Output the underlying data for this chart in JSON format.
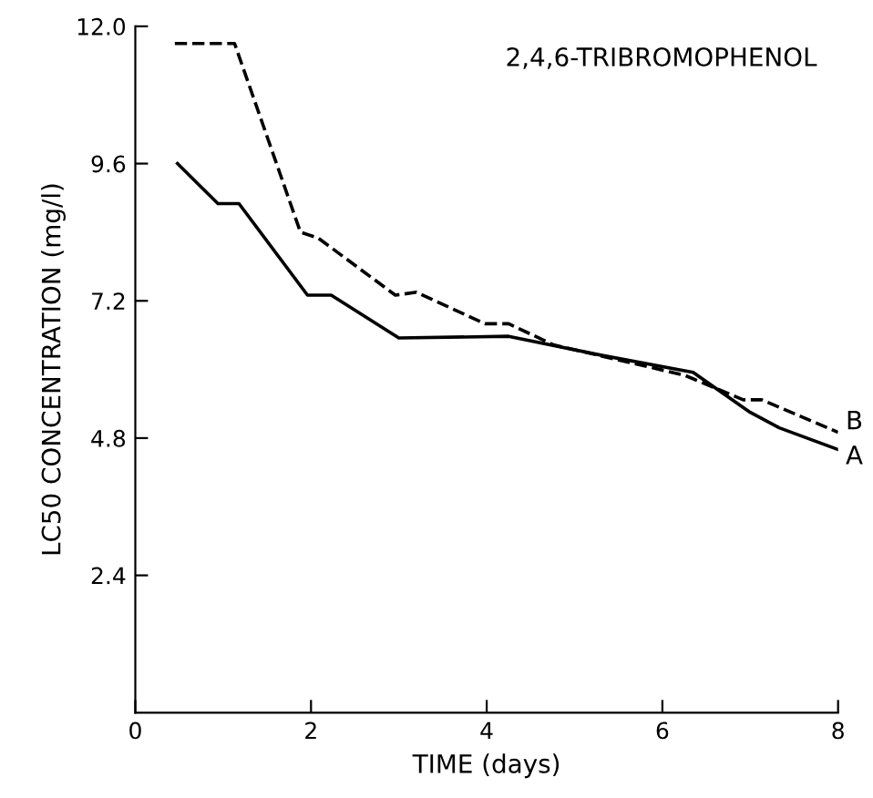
{
  "chart_data": {
    "type": "line",
    "title": "2,4,6-TRIBROMOPHENOL",
    "xlabel": "TIME (days)",
    "ylabel": "LC50 CONCENTRATION (mg/l)",
    "xlim": [
      0,
      8
    ],
    "xticks": [
      0,
      2,
      4,
      6,
      8
    ],
    "ylim": [
      0,
      12.0
    ],
    "yticks": [
      {
        "value": 2.4,
        "label": "2.4"
      },
      {
        "value": 4.8,
        "label": "4.8"
      },
      {
        "value": 7.2,
        "label": "7.2"
      },
      {
        "value": 9.6,
        "label": "9.6"
      },
      {
        "value": 12.0,
        "label": "12.0"
      }
    ],
    "grid": false,
    "legend": false,
    "marker": "none",
    "series": [
      {
        "name": "A",
        "color": "#000000",
        "line_style": "solid",
        "x": [
          0.48,
          0.94,
          1.18,
          1.96,
          2.23,
          3.0,
          4.25,
          5.3,
          6.35,
          7.0,
          7.33,
          8.0
        ],
        "values": [
          9.6,
          8.9,
          8.9,
          7.3,
          7.3,
          6.55,
          6.58,
          6.25,
          5.95,
          5.25,
          4.98,
          4.6
        ]
      },
      {
        "name": "B",
        "color": "#000000",
        "line_style": "dashed",
        "x": [
          0.45,
          1.13,
          1.88,
          2.08,
          2.96,
          3.2,
          3.98,
          4.25,
          4.76,
          6.25,
          6.92,
          7.13,
          8.0
        ],
        "values": [
          11.7,
          11.7,
          8.4,
          8.3,
          7.3,
          7.35,
          6.8,
          6.8,
          6.43,
          5.9,
          5.47,
          5.47,
          4.9
        ]
      }
    ]
  }
}
